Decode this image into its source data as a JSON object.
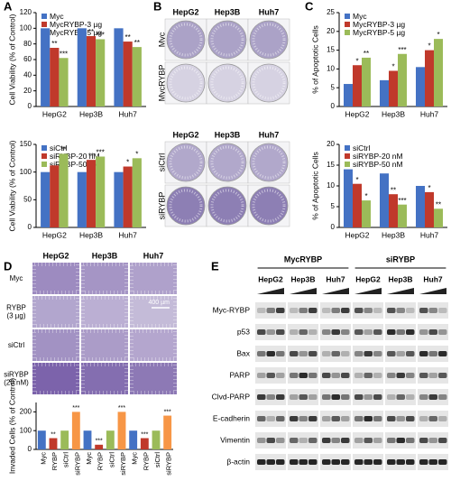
{
  "panel_labels": [
    "A",
    "B",
    "C",
    "D",
    "E"
  ],
  "chart_data": [
    {
      "type": "bar",
      "y_label": "Cell Viability (% of Control)",
      "categories": [
        "HepG2",
        "Hep3B",
        "Huh7"
      ],
      "series": [
        {
          "name": "Myc",
          "color": "#4472c4",
          "values": [
            100,
            100,
            100
          ],
          "significance": [
            null,
            null,
            null
          ]
        },
        {
          "name": "MycRYBP-3 µg",
          "color": "#c0392b",
          "values": [
            75,
            90,
            83
          ],
          "significance": [
            "**",
            "**",
            "**"
          ]
        },
        {
          "name": "MycRYBP-5 µg",
          "color": "#9bbb59",
          "values": [
            62,
            86,
            76
          ],
          "significance": [
            "***",
            "***",
            "**"
          ]
        }
      ],
      "ylim": [
        0,
        120
      ],
      "yticks": [
        0,
        20,
        40,
        60,
        80,
        100,
        120
      ]
    },
    {
      "type": "bar",
      "y_label": "Cell Viability (% of Control)",
      "categories": [
        "HepG2",
        "Hep3B",
        "Huh7"
      ],
      "series": [
        {
          "name": "siCtrl",
          "color": "#4472c4",
          "values": [
            100,
            100,
            100
          ],
          "significance": [
            null,
            null,
            null
          ]
        },
        {
          "name": "siRYBP-20 nM",
          "color": "#c0392b",
          "values": [
            112,
            122,
            110
          ],
          "significance": [
            null,
            "**",
            "*"
          ]
        },
        {
          "name": "siRYBP-50 nM",
          "color": "#9bbb59",
          "values": [
            133,
            128,
            125
          ],
          "significance": [
            "**",
            "***",
            "*"
          ]
        }
      ],
      "ylim": [
        0,
        150
      ],
      "yticks": [
        0,
        50,
        100,
        150
      ]
    },
    {
      "type": "bar",
      "y_label": "% of Apoptotic Cells",
      "categories": [
        "HepG2",
        "Hep3B",
        "Huh7"
      ],
      "series": [
        {
          "name": "Myc",
          "color": "#4472c4",
          "values": [
            6,
            7,
            10.5
          ],
          "significance": [
            null,
            null,
            null
          ]
        },
        {
          "name": "MycRYBP-3 µg",
          "color": "#c0392b",
          "values": [
            11,
            9.5,
            15
          ],
          "significance": [
            "*",
            "*",
            "*"
          ]
        },
        {
          "name": "MycRYBP-5 µg",
          "color": "#9bbb59",
          "values": [
            13,
            14,
            18
          ],
          "significance": [
            "**",
            "***",
            "*"
          ]
        }
      ],
      "ylim": [
        0,
        25
      ],
      "yticks": [
        0,
        5,
        10,
        15,
        20,
        25
      ]
    },
    {
      "type": "bar",
      "y_label": "% of Apoptotic Cells",
      "categories": [
        "HepG2",
        "Hep3B",
        "Huh7"
      ],
      "series": [
        {
          "name": "siCtrl",
          "color": "#4472c4",
          "values": [
            14,
            13,
            10
          ],
          "significance": [
            null,
            null,
            null
          ]
        },
        {
          "name": "siRYBP-20 nM",
          "color": "#c0392b",
          "values": [
            10.5,
            8,
            8.5
          ],
          "significance": [
            "*",
            "**",
            "*"
          ]
        },
        {
          "name": "siRYBP-50 nM",
          "color": "#9bbb59",
          "values": [
            6.5,
            5.5,
            4.5
          ],
          "significance": [
            "*",
            "***",
            "**"
          ]
        }
      ],
      "ylim": [
        0,
        20
      ],
      "yticks": [
        0,
        5,
        10,
        15,
        20
      ]
    },
    {
      "type": "bar",
      "y_label": "Invaded Cells (% of Control)",
      "categories": [
        "Myc",
        "RYBP",
        "siCtrl",
        "siRYBP",
        "Myc",
        "RYBP",
        "siCtrl",
        "siRYBP",
        "Myc",
        "RYBP",
        "siCtrl",
        "siRYBP"
      ],
      "values": [
        100,
        60,
        100,
        200,
        100,
        25,
        100,
        200,
        100,
        60,
        100,
        180
      ],
      "colors": [
        "#4472c4",
        "#c0392b",
        "#9bbb59",
        "#f79646",
        "#4472c4",
        "#c0392b",
        "#9bbb59",
        "#f79646",
        "#4472c4",
        "#c0392b",
        "#9bbb59",
        "#f79646"
      ],
      "significance": [
        null,
        "**",
        null,
        "***",
        null,
        "***",
        null,
        "***",
        null,
        "***",
        null,
        "***"
      ],
      "ylim": [
        0,
        250
      ],
      "yticks": [
        0,
        100,
        200
      ]
    }
  ],
  "colony_assay": {
    "overexpression": {
      "columns": [
        "HepG2",
        "Hep3B",
        "Huh7"
      ],
      "rows": [
        "Myc",
        "MycRYBP"
      ]
    },
    "knockdown": {
      "columns": [
        "HepG2",
        "Hep3B",
        "Huh7"
      ],
      "rows": [
        "siCtrl",
        "siRYBP"
      ]
    }
  },
  "invasion_assay": {
    "columns": [
      "HepG2",
      "Hep3B",
      "Huh7"
    ],
    "rows": [
      [
        "Myc"
      ],
      [
        "RYBP",
        "(3 µg)"
      ],
      [
        "siCtrl"
      ],
      [
        "siRYBP",
        "(20 nM)"
      ]
    ],
    "scale_bar": "400 µm"
  },
  "western_blot": {
    "groups": [
      "MycRYBP",
      "siRYBP"
    ],
    "cell_lines": [
      "HepG2",
      "Hep3B",
      "Huh7",
      "HepG2",
      "Hep3B",
      "Huh7"
    ],
    "proteins": [
      "Myc-RYBP",
      "p53",
      "Bax",
      "PARP",
      "Clvd-PARP",
      "E-cadherin",
      "Vimentin",
      "β-actin"
    ]
  }
}
